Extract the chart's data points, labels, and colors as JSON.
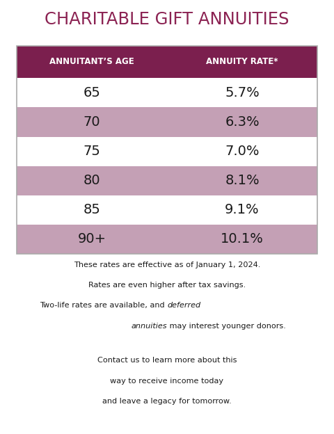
{
  "title": "CHARITABLE GIFT ANNUITIES",
  "title_color": "#8B2252",
  "header_bg": "#7B1F4E",
  "header_text_color": "#FFFFFF",
  "col1_header": "ANNUITANT’S AGE",
  "col2_header": "ANNUITY RATE*",
  "ages": [
    "65",
    "70",
    "75",
    "80",
    "85",
    "90+"
  ],
  "rates": [
    "5.7%",
    "6.3%",
    "7.0%",
    "8.1%",
    "9.1%",
    "10.1%"
  ],
  "row_colors": [
    "#FFFFFF",
    "#C4A0B5",
    "#FFFFFF",
    "#C4A0B5",
    "#FFFFFF",
    "#C4A0B5"
  ],
  "footnote1": "These rates are effective as of January 1, 2024.",
  "footnote2": "Rates are even higher after tax savings.",
  "footnote3a": "Two-life rates are available, and ",
  "footnote3b": "deferred",
  "footnote4a": "annuities",
  "footnote4b": " may interest younger donors.",
  "footnote5": "Contact us to learn more about this",
  "footnote6": "way to receive income today",
  "footnote7": "and leave a legacy for tomorrow.",
  "background_color": "#FFFFFF",
  "outer_border_color": "#AAAAAA",
  "text_color": "#1a1a1a"
}
